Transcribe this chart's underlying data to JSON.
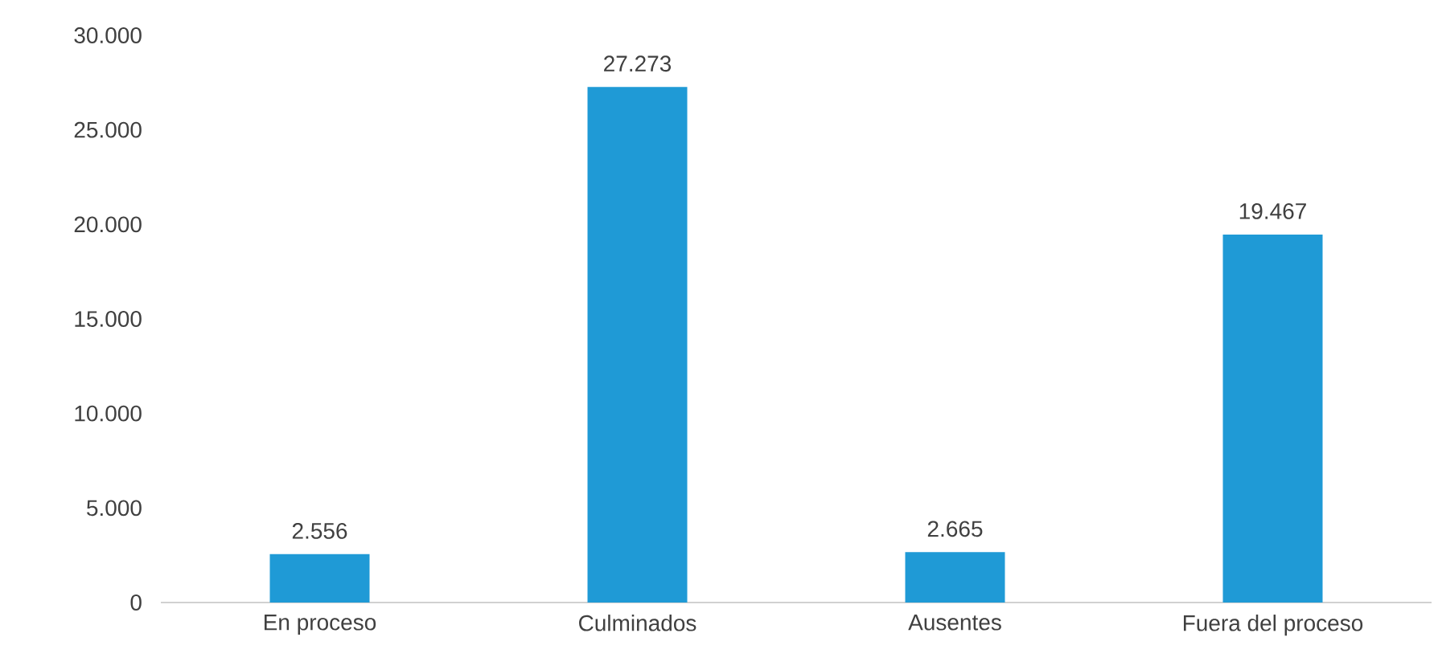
{
  "chart_data": {
    "type": "bar",
    "categories": [
      "En proceso",
      "Culminados",
      "Ausentes",
      "Fuera del proceso"
    ],
    "values": [
      2556,
      27273,
      2665,
      19467
    ],
    "value_labels": [
      "2.556",
      "27.273",
      "2.665",
      "19.467"
    ],
    "color": "#1f9ad6",
    "ylim": [
      0,
      30000
    ],
    "yticks": [
      {
        "value": 0,
        "label": "0"
      },
      {
        "value": 5000,
        "label": "5.000"
      },
      {
        "value": 10000,
        "label": "10.000"
      },
      {
        "value": 15000,
        "label": "15.000"
      },
      {
        "value": 20000,
        "label": "20.000"
      },
      {
        "value": 25000,
        "label": "25.000"
      },
      {
        "value": 30000,
        "label": "30.000"
      }
    ],
    "grid": false
  }
}
